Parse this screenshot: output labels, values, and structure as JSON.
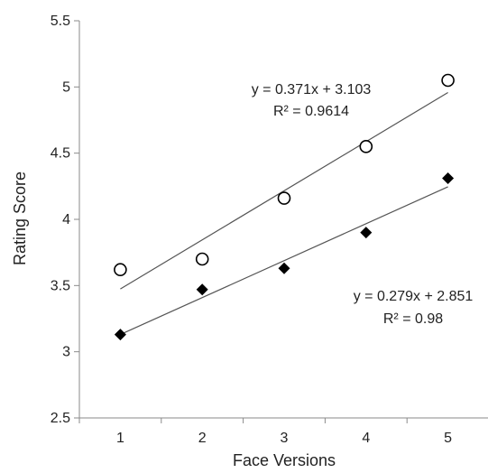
{
  "chart_data": {
    "type": "scatter",
    "title": "",
    "xlabel": "Face Versions",
    "ylabel": "Rating Score",
    "xlim": [
      0.5,
      5.5
    ],
    "ylim": [
      2.5,
      5.5
    ],
    "x_ticks": [
      "1",
      "2",
      "3",
      "4",
      "5"
    ],
    "y_ticks": [
      "2.5",
      "3",
      "3.5",
      "4",
      "4.5",
      "5",
      "5.5"
    ],
    "grid": false,
    "legend": "none",
    "series": [
      {
        "marker": "open-circle",
        "color": "#000000",
        "x": [
          1,
          2,
          3,
          4,
          5
        ],
        "y": [
          3.62,
          3.7,
          4.16,
          4.55,
          5.05
        ],
        "trendline": {
          "slope": 0.371,
          "intercept": 3.103,
          "x_range": [
            1,
            5
          ],
          "equation": "y = 0.371x + 3.103",
          "r2": "R² = 0.9614"
        }
      },
      {
        "marker": "filled-diamond",
        "color": "#000000",
        "x": [
          1,
          2,
          3,
          4,
          5
        ],
        "y": [
          3.13,
          3.47,
          3.63,
          3.9,
          4.31
        ],
        "trendline": {
          "slope": 0.279,
          "intercept": 2.851,
          "x_range": [
            1,
            5
          ],
          "equation": "y = 0.279x + 2.851",
          "r2": "R² = 0.98"
        }
      }
    ]
  }
}
